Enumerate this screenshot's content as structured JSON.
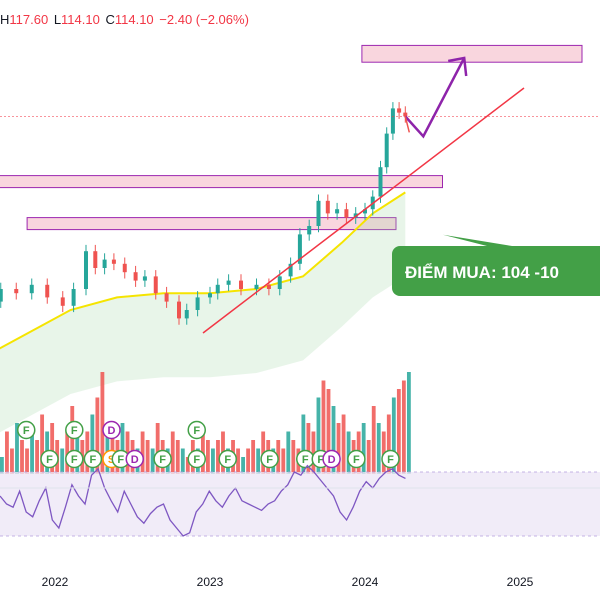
{
  "ohlc": {
    "high_label": "H",
    "high": "117.60",
    "low_label": "L",
    "low": "114.10",
    "close_label": "C",
    "close": "114.10",
    "change": "−2.40 (−2.06%)"
  },
  "callout": {
    "text": "ĐIỂM MUA: 104 -10"
  },
  "colors": {
    "up": "#26a69a",
    "down": "#ef5350",
    "ma": "#f5e400",
    "trend": "#f23645",
    "arrow_up": "#8e24aa",
    "callout": "#43a047",
    "zone_fill": "#f9d6de",
    "zone_border": "#9c27b0",
    "rsi": "#7e57c2"
  },
  "chart_data": {
    "type": "candlestick",
    "x_ticks": [
      "2022",
      "2023",
      "2024",
      "2025"
    ],
    "price_series": [
      {
        "t": 2021.45,
        "c": 66
      },
      {
        "t": 2021.55,
        "c": 70
      },
      {
        "t": 2021.65,
        "c": 73
      },
      {
        "t": 2021.75,
        "c": 72
      },
      {
        "t": 2021.85,
        "c": 74
      },
      {
        "t": 2021.95,
        "c": 71
      },
      {
        "t": 2022.05,
        "c": 69
      },
      {
        "t": 2022.12,
        "c": 73
      },
      {
        "t": 2022.2,
        "c": 82
      },
      {
        "t": 2022.26,
        "c": 78
      },
      {
        "t": 2022.32,
        "c": 80
      },
      {
        "t": 2022.38,
        "c": 79
      },
      {
        "t": 2022.45,
        "c": 77
      },
      {
        "t": 2022.52,
        "c": 75
      },
      {
        "t": 2022.58,
        "c": 76
      },
      {
        "t": 2022.65,
        "c": 72
      },
      {
        "t": 2022.72,
        "c": 70
      },
      {
        "t": 2022.8,
        "c": 66
      },
      {
        "t": 2022.85,
        "c": 68
      },
      {
        "t": 2022.92,
        "c": 71
      },
      {
        "t": 2023.0,
        "c": 72
      },
      {
        "t": 2023.05,
        "c": 74
      },
      {
        "t": 2023.12,
        "c": 75
      },
      {
        "t": 2023.2,
        "c": 73
      },
      {
        "t": 2023.3,
        "c": 74
      },
      {
        "t": 2023.38,
        "c": 73
      },
      {
        "t": 2023.45,
        "c": 76
      },
      {
        "t": 2023.52,
        "c": 79
      },
      {
        "t": 2023.58,
        "c": 86
      },
      {
        "t": 2023.64,
        "c": 88
      },
      {
        "t": 2023.7,
        "c": 94
      },
      {
        "t": 2023.76,
        "c": 91
      },
      {
        "t": 2023.82,
        "c": 92
      },
      {
        "t": 2023.88,
        "c": 90
      },
      {
        "t": 2023.94,
        "c": 91
      },
      {
        "t": 2024.0,
        "c": 92
      },
      {
        "t": 2024.05,
        "c": 95
      },
      {
        "t": 2024.1,
        "c": 102
      },
      {
        "t": 2024.14,
        "c": 110
      },
      {
        "t": 2024.18,
        "c": 116
      },
      {
        "t": 2024.22,
        "c": 115
      },
      {
        "t": 2024.26,
        "c": 114.1
      }
    ],
    "moving_average": [
      {
        "t": 2021.45,
        "v": 55
      },
      {
        "t": 2021.8,
        "v": 62
      },
      {
        "t": 2022.1,
        "v": 68
      },
      {
        "t": 2022.4,
        "v": 71
      },
      {
        "t": 2022.7,
        "v": 72
      },
      {
        "t": 2023.0,
        "v": 72
      },
      {
        "t": 2023.3,
        "v": 73
      },
      {
        "t": 2023.6,
        "v": 76
      },
      {
        "t": 2023.85,
        "v": 84
      },
      {
        "t": 2024.05,
        "v": 91
      },
      {
        "t": 2024.26,
        "v": 96
      }
    ],
    "zones": [
      {
        "t0": 2023.98,
        "t1": 2025.4,
        "p0": 127,
        "p1": 131
      },
      {
        "t0": 2021.62,
        "t1": 2024.5,
        "p0": 98,
        "p1": 100
      },
      {
        "t0": 2021.82,
        "t1": 2024.2,
        "p0": 89,
        "p1": 90
      }
    ],
    "last_price": 114.1,
    "projection": {
      "t": 2024.64,
      "p": 128
    },
    "callout_target": {
      "t": 2024.4,
      "p": 84
    },
    "volume": [
      2,
      5,
      3,
      6,
      4,
      3,
      5,
      4,
      7,
      5,
      6,
      4,
      3,
      5,
      8,
      6,
      4,
      5,
      7,
      9,
      12,
      6,
      5,
      4,
      6,
      5,
      4,
      3,
      5,
      4,
      3,
      6,
      4,
      3,
      5,
      4,
      3,
      2,
      4,
      3,
      5,
      4,
      3,
      4,
      5,
      3,
      4,
      3,
      2,
      3,
      4,
      3,
      5,
      4,
      3,
      4,
      3,
      5,
      4,
      3,
      7,
      6,
      5,
      9,
      11,
      10,
      8,
      6,
      7,
      5,
      4,
      5,
      6,
      4,
      8,
      6,
      5,
      7,
      9,
      10,
      11,
      12
    ],
    "rsi_band": [
      30,
      70
    ],
    "rsi": [
      55,
      50,
      48,
      58,
      45,
      42,
      52,
      60,
      40,
      35,
      48,
      62,
      55,
      50,
      68,
      72,
      60,
      52,
      45,
      58,
      50,
      42,
      38,
      44,
      48,
      50,
      40,
      35,
      30,
      32,
      45,
      50,
      58,
      52,
      48,
      55,
      60,
      52,
      50,
      48,
      46,
      50,
      52,
      58,
      62,
      70,
      68,
      74,
      70,
      65,
      60,
      55,
      45,
      40,
      48,
      58,
      64,
      60,
      66,
      70,
      72,
      68,
      66
    ],
    "badges": [
      {
        "letter": "F",
        "t": 2021.75,
        "row": 0
      },
      {
        "letter": "F",
        "t": 2021.9,
        "row": 1
      },
      {
        "letter": "F",
        "t": 2022.06,
        "row": 0
      },
      {
        "letter": "F",
        "t": 2022.06,
        "row": 1
      },
      {
        "letter": "D",
        "t": 2022.3,
        "row": 0
      },
      {
        "letter": "F",
        "t": 2022.18,
        "row": 1
      },
      {
        "letter": "S",
        "t": 2022.3,
        "row": 1
      },
      {
        "letter": "F",
        "t": 2022.36,
        "row": 1
      },
      {
        "letter": "D",
        "t": 2022.45,
        "row": 1
      },
      {
        "letter": "F",
        "t": 2022.63,
        "row": 1
      },
      {
        "letter": "F",
        "t": 2022.85,
        "row": 0
      },
      {
        "letter": "F",
        "t": 2022.85,
        "row": 1
      },
      {
        "letter": "F",
        "t": 2023.05,
        "row": 1
      },
      {
        "letter": "F",
        "t": 2023.32,
        "row": 1
      },
      {
        "letter": "F",
        "t": 2023.55,
        "row": 1
      },
      {
        "letter": "F",
        "t": 2023.65,
        "row": 1
      },
      {
        "letter": "D",
        "t": 2023.72,
        "row": 1
      },
      {
        "letter": "F",
        "t": 2023.88,
        "row": 1
      },
      {
        "letter": "F",
        "t": 2024.1,
        "row": 1
      }
    ]
  }
}
